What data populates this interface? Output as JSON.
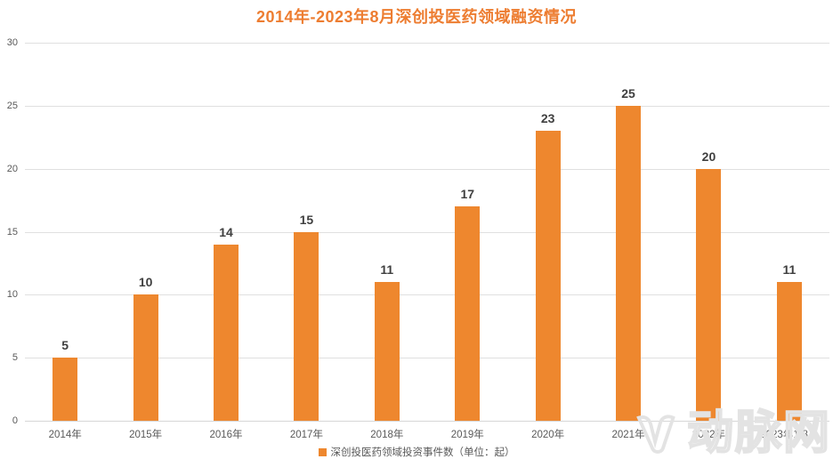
{
  "title": "2014年-2023年8月深创投医药领域融资情况",
  "chart_data": {
    "type": "bar",
    "title": "2014年-2023年8月深创投医药领域融资情况",
    "categories": [
      "2014年",
      "2015年",
      "2016年",
      "2017年",
      "2018年",
      "2019年",
      "2020年",
      "2021年",
      "2022年",
      "2023年1-8月"
    ],
    "values": [
      5,
      10,
      14,
      15,
      11,
      17,
      23,
      25,
      20,
      11
    ],
    "yticks": [
      0,
      5,
      10,
      15,
      20,
      25,
      30
    ],
    "ylim": [
      0,
      30
    ],
    "xlabel": "",
    "ylabel": "",
    "grid": "horizontal",
    "legend_position": "bottom",
    "legend": "深创投医药领域投资事件数（单位：起）",
    "bar_color": "#EE872E",
    "title_color": "#ED7D31",
    "axis_text_color": "#595959",
    "data_label_color": "#3f3f3f"
  },
  "legend": {
    "label": "深创投医药领域投资事件数（单位：起）"
  },
  "watermark": {
    "logo": "VB-logo",
    "text": "动脉网"
  }
}
